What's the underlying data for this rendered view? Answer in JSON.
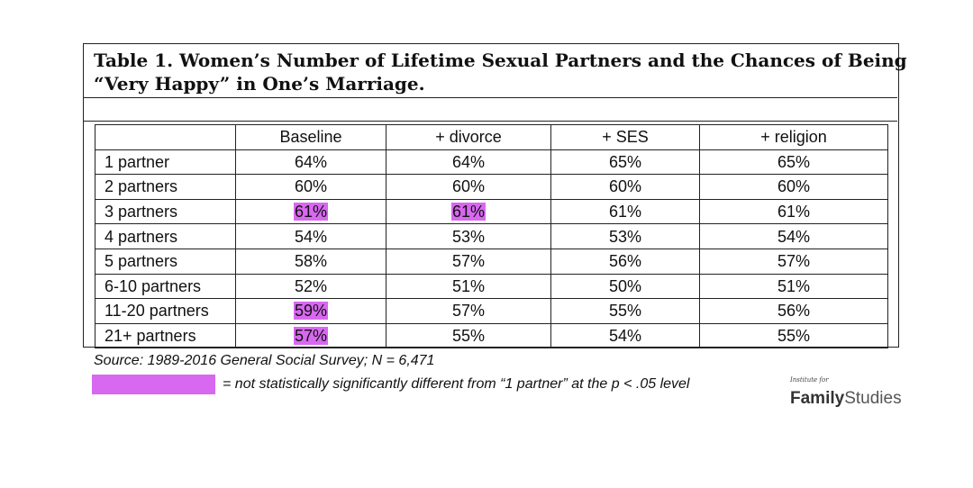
{
  "chart_data": {
    "type": "table",
    "title_line1": "Table 1. Women’s Number of Lifetime Sexual Partners and the Chances of Being",
    "title_line2": "“Very Happy” in One’s Marriage.",
    "columns": [
      "",
      "Baseline",
      "+ divorce",
      "+ SES",
      "+ religion"
    ],
    "rows": [
      {
        "label": "1 partner",
        "values": [
          "64%",
          "64%",
          "65%",
          "65%"
        ],
        "highlight": [
          false,
          false,
          false,
          false
        ]
      },
      {
        "label": "2 partners",
        "values": [
          "60%",
          "60%",
          "60%",
          "60%"
        ],
        "highlight": [
          false,
          false,
          false,
          false
        ]
      },
      {
        "label": "3 partners",
        "values": [
          "61%",
          "61%",
          "61%",
          "61%"
        ],
        "highlight": [
          true,
          true,
          false,
          false
        ]
      },
      {
        "label": "4 partners",
        "values": [
          "54%",
          "53%",
          "53%",
          "54%"
        ],
        "highlight": [
          false,
          false,
          false,
          false
        ]
      },
      {
        "label": "5 partners",
        "values": [
          "58%",
          "57%",
          "56%",
          "57%"
        ],
        "highlight": [
          false,
          false,
          false,
          false
        ]
      },
      {
        "label": "6-10 partners",
        "values": [
          "52%",
          "51%",
          "50%",
          "51%"
        ],
        "highlight": [
          false,
          false,
          false,
          false
        ]
      },
      {
        "label": "11-20 partners",
        "values": [
          "59%",
          "57%",
          "55%",
          "56%"
        ],
        "highlight": [
          true,
          false,
          false,
          false
        ]
      },
      {
        "label": "21+ partners",
        "values": [
          "57%",
          "55%",
          "54%",
          "55%"
        ],
        "highlight": [
          true,
          false,
          false,
          false
        ]
      }
    ],
    "source": "Source: 1989-2016 General Social Survey; N = 6,471",
    "legend_text": "= not statistically significantly different from “1 partner” at the p < .05 level",
    "highlight_color": "#d868f0"
  },
  "logo": {
    "small": "Institute for",
    "bold": "Family",
    "light": "Studies"
  }
}
